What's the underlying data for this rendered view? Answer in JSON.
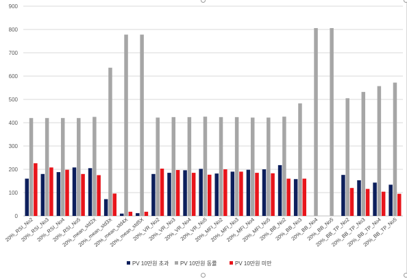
{
  "chart_data": {
    "type": "bar",
    "ylim": [
      0,
      900
    ],
    "yticks": [
      0,
      100,
      200,
      300,
      400,
      500,
      600,
      700,
      800,
      900
    ],
    "grid": true,
    "legend_position": "bottom",
    "categories": [
      "20%_RSI_No2",
      "20%_RSI_No3",
      "20%_RSI_No4",
      "20%_RSI_No5",
      "20%_mean_std2X",
      "20%_mean_std3X",
      "20%_mean_std4X",
      "20%_mean_std5X",
      "20%_VR_No2",
      "20%_VR_No3",
      "20%_VR_No4",
      "20%_VR_No5",
      "20%_MFI_No2",
      "20%_MFI_No3",
      "20%_MFI_No4",
      "20%_MFI_No5",
      "20%_BB_No2",
      "20%_BB_No3",
      "20%_BB_No4",
      "20%_BB_No5",
      "20%_BB_TP_No2",
      "20%_BB_TP_No3",
      "20%_BB_TP_No4",
      "20%_BB_TP_No5"
    ],
    "series": [
      {
        "name": "PV 10만원 초과",
        "color": "#0d1f5c",
        "values": [
          160,
          180,
          188,
          208,
          205,
          72,
          10,
          12,
          180,
          185,
          196,
          202,
          182,
          190,
          198,
          200,
          218,
          158,
          0,
          0,
          176,
          153,
          143,
          134
        ]
      },
      {
        "name": "PV 10만원 동률",
        "color": "#a6a6a6",
        "values": [
          420,
          420,
          420,
          420,
          425,
          636,
          778,
          778,
          422,
          424,
          424,
          426,
          424,
          424,
          422,
          422,
          426,
          483,
          806,
          806,
          505,
          532,
          557,
          572
        ]
      },
      {
        "name": "PV 10만원 미만",
        "color": "#e8151b",
        "values": [
          226,
          208,
          198,
          180,
          175,
          96,
          18,
          18,
          203,
          197,
          185,
          177,
          200,
          190,
          185,
          183,
          160,
          160,
          0,
          0,
          120,
          116,
          104,
          95
        ]
      }
    ]
  }
}
